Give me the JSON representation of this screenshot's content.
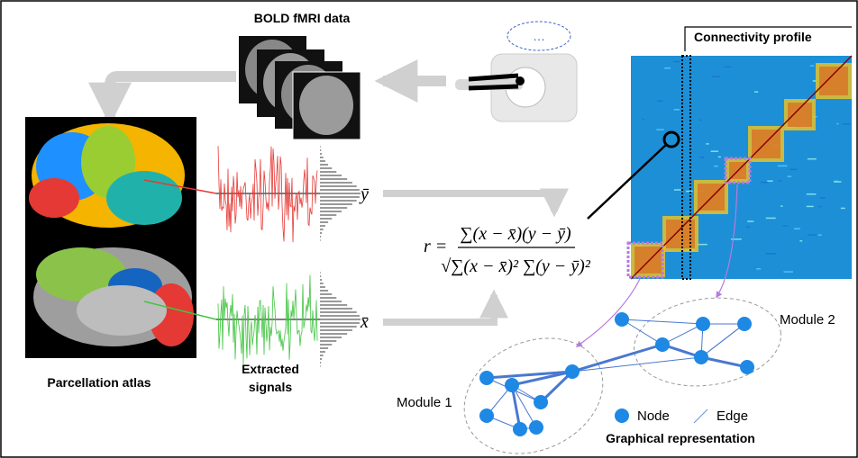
{
  "header": {
    "bold_label": "BOLD fMRI data",
    "connectivity_label": "Connectivity profile"
  },
  "atlas": {
    "label": "Parcellation atlas"
  },
  "signals": {
    "label_lines": [
      "Extracted",
      "signals"
    ],
    "y_label": "ȳ",
    "x_label": "x̄"
  },
  "formula": {
    "lhs": "r =",
    "numerator": "∑(x − x̄)(y − ȳ)",
    "denominator": "√∑(x − x̄)² ∑(y − ȳ)²"
  },
  "graph": {
    "module1": "Module 1",
    "module2": "Module 2",
    "legend": {
      "node": "Node",
      "edge": "Edge"
    },
    "title": "Graphical representation"
  }
}
